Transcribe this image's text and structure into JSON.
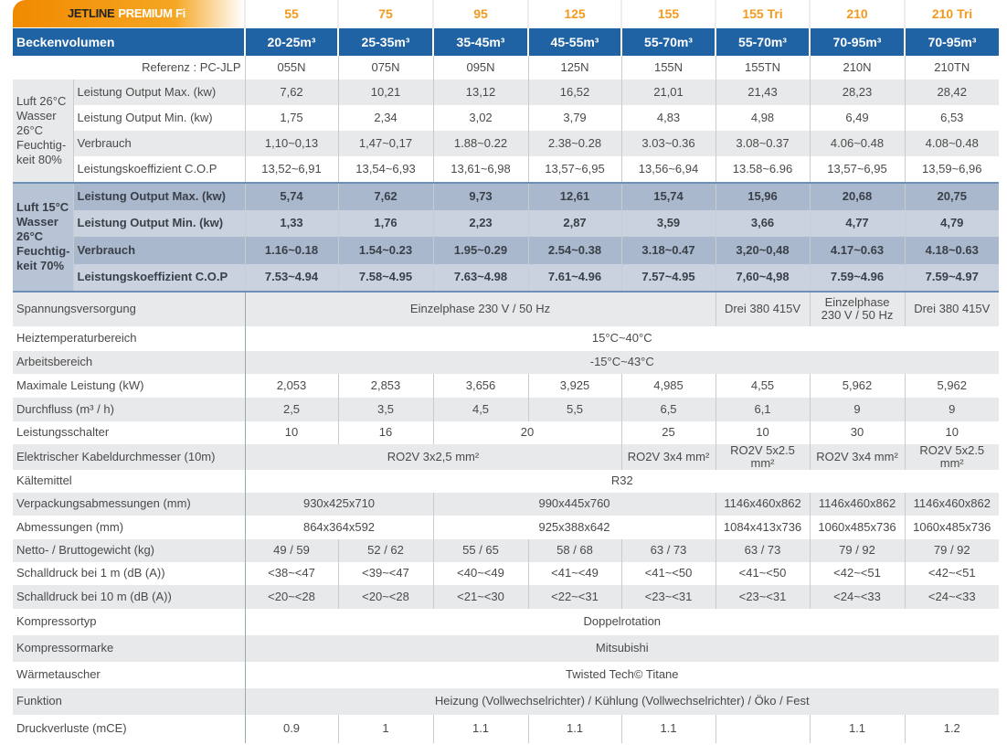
{
  "header": {
    "brand": "JETLINE",
    "series": "PREMIUM Fi",
    "models": [
      "55",
      "75",
      "95",
      "125",
      "155",
      "155 Tri",
      "210",
      "210 Tri"
    ]
  },
  "volume": {
    "label": "Beckenvolumen",
    "values": [
      "20-25m³",
      "25-35m³",
      "35-45m³",
      "45-55m³",
      "55-70m³",
      "55-70m³",
      "70-95m³",
      "70-95m³"
    ]
  },
  "reference": {
    "label": "Referenz : PC-JLP",
    "values": [
      "055N",
      "075N",
      "095N",
      "125N",
      "155N",
      "155TN",
      "210N",
      "210TN"
    ]
  },
  "groups": [
    {
      "label": "Luft 26°C Wasser 26°C Feuchtig-keit 80%",
      "rows": [
        {
          "label": "Leistung Output Max. (kw)",
          "values": [
            "7,62",
            "10,21",
            "13,12",
            "16,52",
            "21,01",
            "21,43",
            "28,23",
            "28,42"
          ]
        },
        {
          "label": "Leistung Output Min. (kw)",
          "values": [
            "1,75",
            "2,34",
            "3,02",
            "3,79",
            "4,83",
            "4,98",
            "6,49",
            "6,53"
          ]
        },
        {
          "label": "Verbrauch",
          "values": [
            "1,10~0,13",
            "1,47~0,17",
            "1.88~0.22",
            "2.38~0.28",
            "3.03~0.36",
            "3.08~0.37",
            "4.06~0.48",
            "4.08~0.48"
          ]
        },
        {
          "label": "Leistungskoeffizient C.O.P",
          "values": [
            "13,52~6,91",
            "13,54~6,93",
            "13,61~6,98",
            "13,57~6,95",
            "13,56~6,94",
            "13.58~6.96",
            "13,57~6,95",
            "13,59~6,96"
          ]
        }
      ]
    },
    {
      "label": "Luft 15°C Wasser 26°C Feuchtig-keit 70%",
      "rows": [
        {
          "label": "Leistung Output Max. (kw)",
          "values": [
            "5,74",
            "7,62",
            "9,73",
            "12,61",
            "15,74",
            "15,96",
            "20,68",
            "20,75"
          ]
        },
        {
          "label": "Leistung Output Min. (kw)",
          "values": [
            "1,33",
            "1,76",
            "2,23",
            "2,87",
            "3,59",
            "3,66",
            "4,77",
            "4,79"
          ]
        },
        {
          "label": "Verbrauch",
          "values": [
            "1.16~0.18",
            "1.54~0.23",
            "1.95~0.29",
            "2.54~0.38",
            "3.18~0.47",
            "3,20~0,48",
            "4.17~0.63",
            "4.18~0.63"
          ]
        },
        {
          "label": "Leistungskoeffizient C.O.P",
          "values": [
            "7.53~4.94",
            "7.58~4.95",
            "7.63~4.98",
            "7.61~4.96",
            "7.57~4.95",
            "7,60~4,98",
            "7.59~4.96",
            "7.59~4.97"
          ]
        }
      ]
    }
  ],
  "specs": [
    {
      "label": "Spannungsversorgung",
      "values": [
        "Einzelphase 230 V / 50 Hz",
        "Drei 380 415V",
        "Einzelphase 230 V / 50 Hz",
        "Drei 380 415V"
      ]
    },
    {
      "label": "Heiztemperaturbereich",
      "values": [
        "15°C~40°C"
      ]
    },
    {
      "label": "Arbeitsbereich",
      "values": [
        "-15°C~43°C"
      ]
    },
    {
      "label": "Maximale Leistung (kW)",
      "values": [
        "2,053",
        "2,853",
        "3,656",
        "3,925",
        "4,985",
        "4,55",
        "5,962",
        "5,962"
      ]
    },
    {
      "label": "Durchfluss (m³ / h)",
      "values": [
        "2,5",
        "3,5",
        "4,5",
        "5,5",
        "6,5",
        "6,1",
        "9",
        "9"
      ]
    },
    {
      "label": "Leistungsschalter",
      "values": [
        "10",
        "16",
        "20",
        "25",
        "10",
        "30",
        "10"
      ]
    },
    {
      "label": "Elektrischer Kabeldurchmesser (10m)",
      "values": [
        "RO2V 3x2,5 mm²",
        "RO2V 3x4 mm²",
        "RO2V 5x2.5 mm²",
        "RO2V 3x4 mm²",
        "RO2V 5x2.5 mm²"
      ]
    },
    {
      "label": "Kältemittel",
      "values": [
        "R32"
      ]
    },
    {
      "label": "Verpackungsabmessungen (mm)",
      "values": [
        "930x425x710",
        "990x445x760",
        "1146x460x862",
        "1146x460x862",
        "1146x460x862"
      ]
    },
    {
      "label": "Abmessungen (mm)",
      "values": [
        "864x364x592",
        "925x388x642",
        "1084x413x736",
        "1060x485x736",
        "1060x485x736"
      ]
    },
    {
      "label": "Netto- / Bruttogewicht (kg)",
      "values": [
        "49 / 59",
        "52 / 62",
        "55 / 65",
        "58 / 68",
        "63 / 73",
        "63 / 73",
        "79 / 92",
        "79 / 92"
      ]
    },
    {
      "label": "Schalldruck bei 1 m (dB (A))",
      "values": [
        "<38~<47",
        "<39~<47",
        "<40~<49",
        "<41~<49",
        "<41~<50",
        "<41~<50",
        "<42~<51",
        "<42~<51"
      ]
    },
    {
      "label": "Schalldruck bei 10 m (dB (A))",
      "values": [
        "<20~<28",
        "<20~<28",
        "<21~<30",
        "<22~<31",
        "<23~<31",
        "<23~<31",
        "<24~<33",
        "<24~<33"
      ]
    },
    {
      "label": "Kompressortyp",
      "values": [
        "Doppelrotation"
      ]
    },
    {
      "label": "Kompressormarke",
      "values": [
        "Mitsubishi"
      ]
    },
    {
      "label": "Wärmetauscher",
      "values": [
        "Twisted Tech© Titane"
      ]
    },
    {
      "label": "Funktion",
      "values": [
        "Heizung (Vollwechselrichter) / Kühlung (Vollwechselrichter) / Öko / Fest"
      ]
    },
    {
      "label": "Druckverluste (mCE)",
      "values": [
        "0.9",
        "1",
        "1.1",
        "1.1",
        "1.1",
        null,
        "1.1",
        "1.2"
      ]
    }
  ]
}
